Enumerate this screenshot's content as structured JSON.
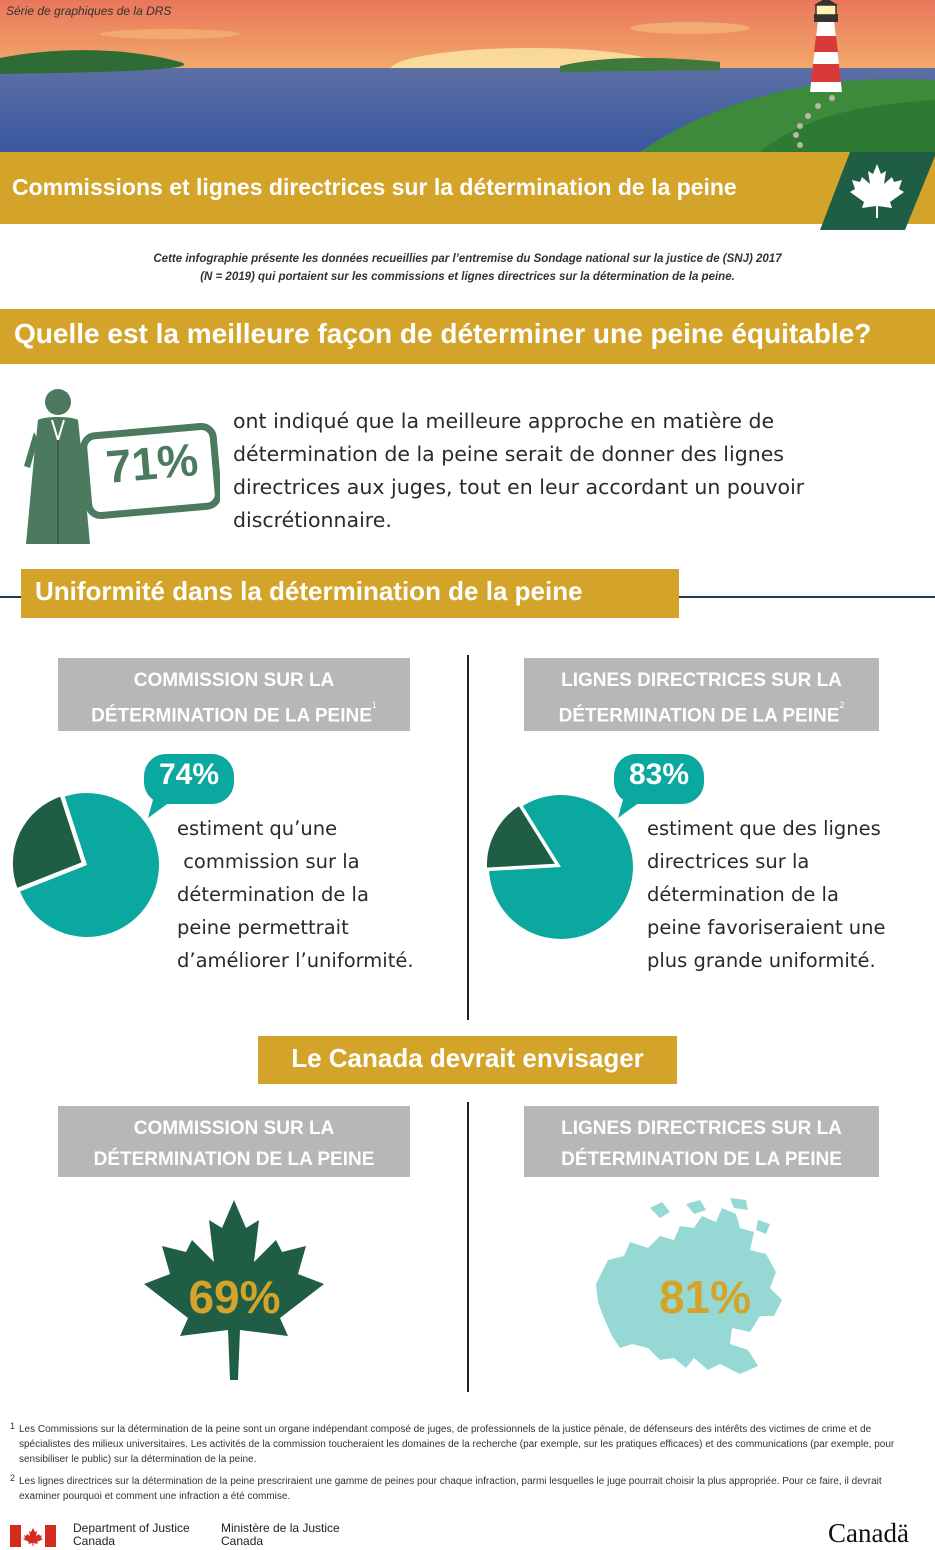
{
  "header": {
    "series_label": "Série de graphiques de la DRS",
    "title": "Commissions et lignes directrices sur la détermination de la peine"
  },
  "intro": {
    "line1": "Cette infographie présente les données recueillies par l’entremise du Sondage national sur la justice de (SNJ) 2017",
    "line2": "(N = 2019) qui portaient sur les commissions et lignes directrices sur la détermination de la peine."
  },
  "question": {
    "heading": "Quelle est la meilleure façon de déterminer une peine équitable?",
    "percent": "71%",
    "percent_value": 71,
    "text": "ont indiqué que la meilleure approche en matière de détermination de la peine serait de donner des lignes directrices aux juges, tout en leur accordant un pouvoir discrétionnaire."
  },
  "uniformity": {
    "heading": "Uniformité dans la détermination de la peine",
    "left": {
      "box_line1": "COMMISSION SUR LA",
      "box_line2": "DÉTERMINATION DE LA PEINE",
      "footnote_ref": "1",
      "percent": "74%",
      "percent_value": 74,
      "desc": [
        "estiment qu’une",
        " commission sur la",
        "détermination de la",
        "peine permettrait",
        "d’améliorer l’uniformité."
      ]
    },
    "right": {
      "box_line1": "LIGNES DIRECTRICES SUR LA",
      "box_line2": "DÉTERMINATION DE LA PEINE",
      "footnote_ref": "2",
      "percent": "83%",
      "percent_value": 83,
      "desc": [
        "estiment que des lignes",
        "directrices sur la",
        "détermination de la",
        "peine favoriseraient une",
        "plus grande uniformité."
      ]
    }
  },
  "consider": {
    "heading": "Le Canada devrait envisager",
    "left": {
      "box_line1": "COMMISSION SUR LA",
      "box_line2": "DÉTERMINATION DE LA PEINE",
      "percent": "69%",
      "icon": "maple-leaf-icon"
    },
    "right": {
      "box_line1": "LIGNES DIRECTRICES SUR LA",
      "box_line2": "DÉTERMINATION DE LA PEINE",
      "percent": "81%",
      "icon": "canada-map-icon"
    }
  },
  "footnotes": [
    {
      "num": "1",
      "text": "Les Commissions sur la détermination de la peine sont un organe indépendant composé de juges, de professionnels de la justice pénale, de défenseurs des intérêts des victimes de crime et de spécialistes des milieux universitaires. Les activités de la commission toucheraient les domaines de la recherche (par exemple, sur les pratiques efficaces) et des communications (par exemple, pour sensibiliser le public) sur la détermination de la peine."
    },
    {
      "num": "2",
      "text": "Les lignes directrices sur la détermination de la peine prescriraient une gamme de peines pour chaque infraction, parmi lesquelles le juge pourrait choisir la plus appropriée. Pour ce faire, il devrait examiner pourquoi et comment une infraction a été commise."
    }
  ],
  "footer": {
    "dept_en_1": "Department of Justice",
    "dept_en_2": "Canada",
    "dept_fr_1": "Ministère de la Justice",
    "dept_fr_2": "Canada",
    "wordmark": "Canadä"
  },
  "colors": {
    "gold": "#d4a42a",
    "teal": "#0aa89e",
    "dark_green": "#1f5e45",
    "gray_box": "#b7b7b7",
    "light_teal": "#96d9d4"
  }
}
